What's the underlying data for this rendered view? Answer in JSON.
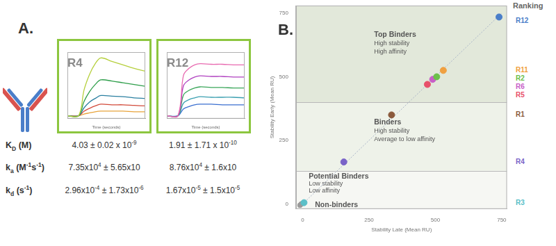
{
  "panel_a": {
    "label": "A.",
    "table": {
      "rows": [
        {
          "label": [
            {
              "text": "K"
            },
            {
              "text": "D",
              "sub": true
            },
            {
              "text": " (M)"
            }
          ],
          "cells": [
            [
              {
                "text": "4.03 ± 0.02 x 10"
              },
              {
                "text": "-9",
                "sup": true
              }
            ],
            [
              {
                "text": "1.91 ± 1.71 x 10"
              },
              {
                "text": "-10",
                "sup": true
              }
            ]
          ]
        },
        {
          "label": [
            {
              "text": "k"
            },
            {
              "text": "a",
              "sub": true
            },
            {
              "text": " (M"
            },
            {
              "text": "-1",
              "sup": true
            },
            {
              "text": "s"
            },
            {
              "text": "-1",
              "sup": true
            },
            {
              "text": ")"
            }
          ],
          "cells": [
            [
              {
                "text": "7.35x10"
              },
              {
                "text": "4",
                "sup": true
              },
              {
                "text": " ± 5.65x10"
              }
            ],
            [
              {
                "text": "8.76x10"
              },
              {
                "text": "4",
                "sup": true
              },
              {
                "text": " ± 1.6x10"
              }
            ]
          ]
        },
        {
          "label": [
            {
              "text": "k"
            },
            {
              "text": "d",
              "sub": true
            },
            {
              "text": " (s"
            },
            {
              "text": "-1",
              "sup": true
            },
            {
              "text": ")"
            }
          ],
          "cells": [
            [
              {
                "text": "2.96x10"
              },
              {
                "text": "-4",
                "sup": true
              },
              {
                "text": " ± 1.73x10"
              },
              {
                "text": "-6",
                "sup": true
              }
            ],
            [
              {
                "text": "1.67x10"
              },
              {
                "text": "-5",
                "sup": true
              },
              {
                "text": " ± 1.5x10"
              },
              {
                "text": "-5",
                "sup": true
              }
            ]
          ]
        }
      ]
    }
  },
  "panel_b": {
    "label": "B."
  },
  "chart_data": [
    {
      "type": "line",
      "title": "R4",
      "x_label": "Time (seconds)",
      "tick_labels": false,
      "grid": false,
      "xlim": [
        0,
        700
      ],
      "ylim": [
        -5,
        110
      ],
      "x": [
        0,
        100,
        150,
        200,
        250,
        300,
        400,
        500,
        600,
        700
      ],
      "series": [
        {
          "color": "#b5cf3b",
          "values": [
            0,
            0,
            45,
            72,
            90,
            100,
            94,
            88,
            82,
            77
          ]
        },
        {
          "color": "#2e9e4a",
          "values": [
            0,
            0,
            25,
            42,
            54,
            62,
            60,
            57,
            54,
            51
          ]
        },
        {
          "color": "#2a7fa0",
          "values": [
            0,
            0,
            14,
            24,
            30,
            35,
            34,
            33,
            31,
            30
          ]
        },
        {
          "color": "#d24a3a",
          "values": [
            0,
            0,
            8,
            13,
            17,
            20,
            19,
            19,
            18,
            17
          ]
        },
        {
          "color": "#e8a33a",
          "values": [
            0,
            0,
            3,
            5,
            7,
            8,
            8,
            8,
            7,
            7
          ]
        }
      ]
    },
    {
      "type": "line",
      "title": "R12",
      "x_label": "Time (seconds)",
      "tick_labels": false,
      "grid": false,
      "xlim": [
        0,
        700
      ],
      "ylim": [
        -5,
        110
      ],
      "x": [
        0,
        100,
        150,
        200,
        250,
        300,
        400,
        500,
        600,
        700
      ],
      "series": [
        {
          "color": "#e86ab0",
          "values": [
            0,
            0,
            70,
            82,
            88,
            90,
            89,
            89,
            88,
            88
          ]
        },
        {
          "color": "#b040c0",
          "values": [
            0,
            0,
            52,
            62,
            67,
            69,
            68,
            68,
            67,
            67
          ]
        },
        {
          "color": "#3aa65a",
          "values": [
            0,
            0,
            36,
            44,
            48,
            50,
            49,
            49,
            48,
            48
          ]
        },
        {
          "color": "#3a9fb0",
          "values": [
            0,
            0,
            22,
            28,
            31,
            33,
            32,
            32,
            32,
            31
          ]
        },
        {
          "color": "#3a6fd0",
          "values": [
            0,
            0,
            12,
            16,
            19,
            20,
            20,
            19,
            19,
            19
          ]
        }
      ]
    },
    {
      "type": "scatter",
      "x_label": "Stability Late (Mean RU)",
      "y_label": "Stability Early (Mean RU)",
      "xlim": [
        -25,
        770
      ],
      "ylim": [
        -20,
        780
      ],
      "xticks": [
        0,
        250,
        500,
        750
      ],
      "yticks": [
        0,
        250,
        500,
        750
      ],
      "grid": false,
      "legend": "right",
      "legend_title": "Ranking",
      "series": [
        {
          "name": "R12",
          "color": "#4a7ec9",
          "x": [
            740
          ],
          "values": [
            735
          ]
        },
        {
          "name": "R11",
          "color": "#f0a040",
          "x": [
            530
          ],
          "values": [
            525
          ]
        },
        {
          "name": "R2",
          "color": "#6cc04a",
          "x": [
            505
          ],
          "values": [
            500
          ]
        },
        {
          "name": "R6",
          "color": "#c85fc8",
          "x": [
            490
          ],
          "values": [
            490
          ]
        },
        {
          "name": "R5",
          "color": "#e8506a",
          "x": [
            470
          ],
          "values": [
            470
          ]
        },
        {
          "name": "R1",
          "color": "#8b5a3c",
          "x": [
            335
          ],
          "values": [
            350
          ]
        },
        {
          "name": "R4",
          "color": "#7a64c8",
          "x": [
            155
          ],
          "values": [
            165
          ]
        },
        {
          "name": "R3",
          "color": "#5bc0c8",
          "x": [
            5
          ],
          "values": [
            5
          ]
        }
      ],
      "unlabeled_points": {
        "color": "#9a9a9a",
        "x": [
          -10,
          -5,
          0
        ],
        "values": [
          -5,
          0,
          3
        ]
      },
      "reference_line": {
        "x": [
          0,
          750
        ],
        "values": [
          0,
          750
        ]
      },
      "regions": [
        {
          "label": "Top Binders",
          "description": [
            "High stability",
            "High affinity"
          ],
          "ymin": 400,
          "ymax": 780,
          "color": "#e2e8da"
        },
        {
          "label": "Binders",
          "description": [
            "High stability",
            "Average to low affinity"
          ],
          "ymin": 130,
          "ymax": 400,
          "color": "#eef2e9"
        },
        {
          "label": "Potential Binders",
          "description": [
            "Low stability",
            "Low affinity"
          ],
          "ymin": -20,
          "ymax": 130,
          "color": "#f6f7f3"
        }
      ],
      "non_binders_label": "Non-binders"
    }
  ]
}
